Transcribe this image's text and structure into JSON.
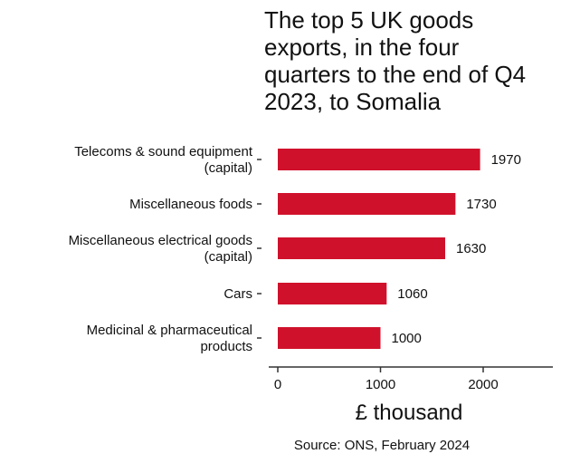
{
  "chart_data": {
    "type": "bar",
    "orientation": "horizontal",
    "title_lines": [
      "The top 5 UK goods",
      "exports, in the four",
      "quarters to the end of Q4",
      "2023, to Somalia"
    ],
    "categories": [
      [
        "Telecoms & sound equipment",
        "(capital)"
      ],
      [
        "Miscellaneous foods"
      ],
      [
        "Miscellaneous electrical goods",
        "(capital)"
      ],
      [
        "Cars"
      ],
      [
        "Medicinal & pharmaceutical",
        "products"
      ]
    ],
    "values": [
      1970,
      1730,
      1630,
      1060,
      1000
    ],
    "value_labels": [
      "1970",
      "1730",
      "1630",
      "1060",
      "1000"
    ],
    "xlabel": "£ thousand",
    "xticks": [
      0,
      1000,
      2000
    ],
    "xlim": [
      0,
      2700
    ],
    "grid": false,
    "bar_color": "#d0112b",
    "source": "Source: ONS, February 2024"
  }
}
